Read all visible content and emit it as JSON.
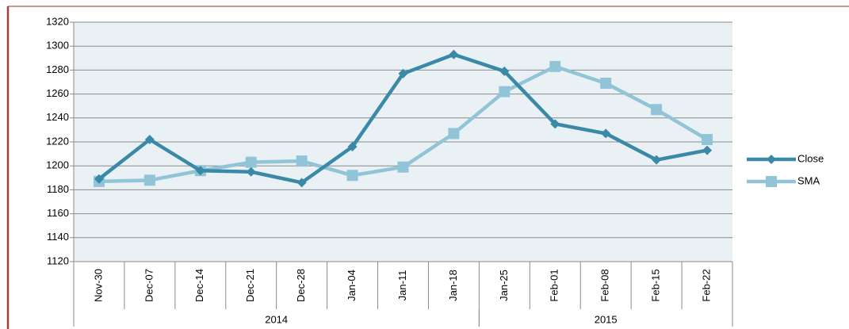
{
  "chart_data": {
    "type": "line",
    "categories": [
      "Nov-30",
      "Dec-07",
      "Dec-14",
      "Dec-21",
      "Dec-28",
      "Jan-04",
      "Jan-11",
      "Jan-18",
      "Jan-25",
      "Feb-01",
      "Feb-08",
      "Feb-15",
      "Feb-22"
    ],
    "x_groups": [
      {
        "label": "2014",
        "count": 8
      },
      {
        "label": "2015",
        "count": 5
      }
    ],
    "series": [
      {
        "name": "Close",
        "color": "#3a89a7",
        "marker": "diamond",
        "values": [
          1189,
          1222,
          1196,
          1195,
          1186,
          1216,
          1277,
          1293,
          1279,
          1235,
          1227,
          1205,
          1213
        ]
      },
      {
        "name": "SMA",
        "color": "#92c4d7",
        "marker": "square",
        "values": [
          1187,
          1188,
          1196,
          1203,
          1204,
          1192,
          1199,
          1227,
          1262,
          1283,
          1269,
          1247,
          1222
        ]
      }
    ],
    "ylim": [
      1120,
      1320
    ],
    "yticks": [
      1120,
      1140,
      1160,
      1180,
      1200,
      1220,
      1240,
      1260,
      1280,
      1300,
      1320
    ],
    "grid": true,
    "legend": "right"
  }
}
